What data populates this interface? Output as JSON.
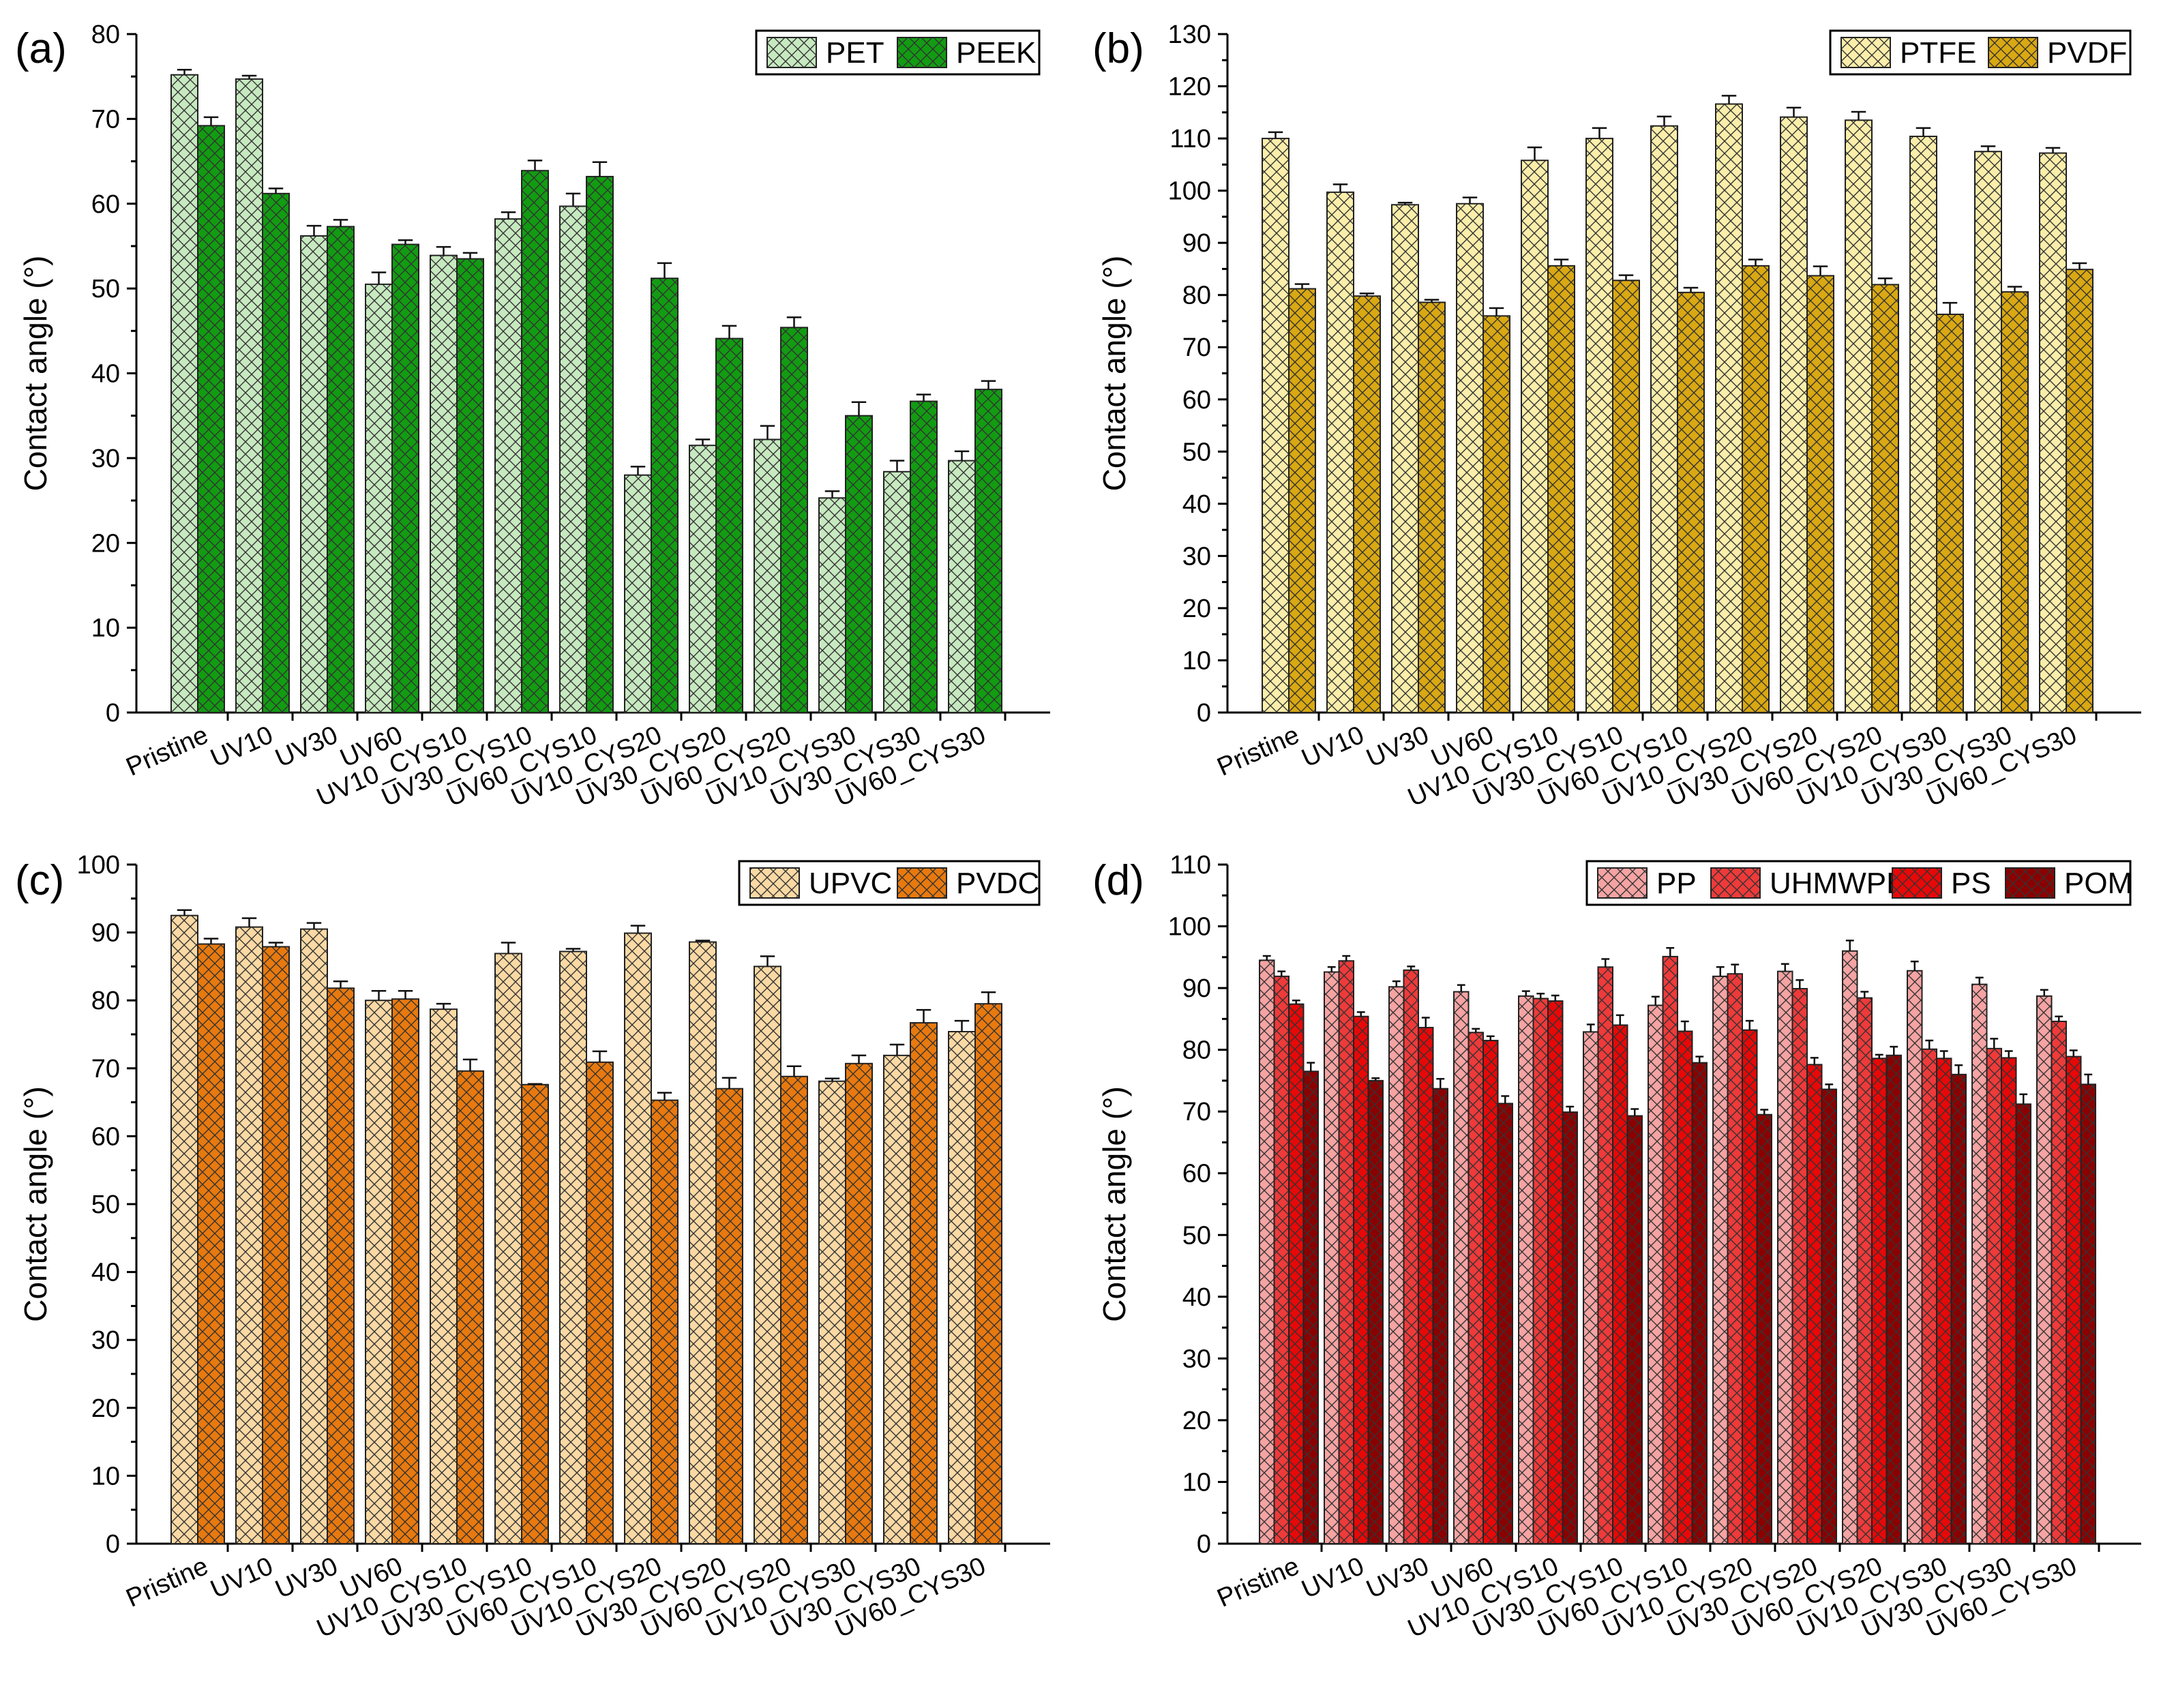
{
  "chart_data": [
    {
      "type": "bar",
      "panel_label": "(a)",
      "ylabel": "Contact angle (°)",
      "ylim": [
        0,
        80
      ],
      "ytick_step": 10,
      "legend_position": "top-right",
      "categories": [
        "Pristine",
        "UV10",
        "UV30",
        "UV60",
        "UV10_CYS10",
        "UV30_CYS10",
        "UV60_CYS10",
        "UV10_CYS20",
        "UV30_CYS20",
        "UV60_CYS20",
        "UV10_CYS30",
        "UV30_CYS30",
        "UV60_CYS30"
      ],
      "series": [
        {
          "name": "PET",
          "color": "#c7e9c0",
          "values": [
            75.2,
            74.7,
            56.2,
            50.5,
            53.9,
            58.2,
            59.7,
            28.0,
            31.5,
            32.2,
            25.3,
            28.4,
            29.7
          ],
          "errors": [
            0.6,
            0.4,
            1.2,
            1.4,
            1.0,
            0.8,
            1.5,
            1.0,
            0.7,
            1.6,
            0.8,
            1.3,
            1.1
          ]
        },
        {
          "name": "PEEK",
          "color": "#129c12",
          "values": [
            69.2,
            61.2,
            57.3,
            55.2,
            53.5,
            63.9,
            63.2,
            51.2,
            44.1,
            45.4,
            35.0,
            36.7,
            38.1
          ],
          "errors": [
            1.0,
            0.6,
            0.8,
            0.5,
            0.7,
            1.2,
            1.7,
            1.8,
            1.5,
            1.2,
            1.6,
            0.8,
            1.0
          ]
        }
      ]
    },
    {
      "type": "bar",
      "panel_label": "(b)",
      "ylabel": "Contact angle (°)",
      "ylim": [
        0,
        130
      ],
      "ytick_step": 10,
      "legend_position": "top-right",
      "categories": [
        "Pristine",
        "UV10",
        "UV30",
        "UV60",
        "UV10_CYS10",
        "UV30_CYS10",
        "UV60_CYS10",
        "UV10_CYS20",
        "UV30_CYS20",
        "UV60_CYS20",
        "UV10_CYS30",
        "UV30_CYS30",
        "UV60_CYS30"
      ],
      "series": [
        {
          "name": "PTFE",
          "color": "#fbeeaa",
          "values": [
            110.0,
            99.7,
            97.3,
            97.5,
            105.8,
            110.0,
            112.4,
            116.6,
            114.1,
            113.5,
            110.4,
            107.5,
            107.2
          ],
          "errors": [
            1.2,
            1.5,
            0.4,
            1.2,
            2.5,
            2.0,
            1.8,
            1.6,
            1.8,
            1.6,
            1.6,
            1.0,
            1.0
          ]
        },
        {
          "name": "PVDF",
          "color": "#d9a813",
          "values": [
            81.2,
            79.8,
            78.6,
            76.0,
            85.6,
            82.8,
            80.5,
            85.6,
            83.7,
            82.0,
            76.3,
            80.6,
            84.9
          ],
          "errors": [
            0.9,
            0.5,
            0.5,
            1.5,
            1.2,
            1.0,
            0.9,
            1.2,
            1.8,
            1.2,
            2.2,
            1.0,
            1.2
          ]
        }
      ]
    },
    {
      "type": "bar",
      "panel_label": "(c)",
      "ylabel": "Contact angle (°)",
      "ylim": [
        0,
        100
      ],
      "ytick_step": 10,
      "legend_position": "top-right",
      "categories": [
        "Pristine",
        "UV10",
        "UV30",
        "UV60",
        "UV10_CYS10",
        "UV30_CYS10",
        "UV60_CYS10",
        "UV10_CYS20",
        "UV30_CYS20",
        "UV60_CYS20",
        "UV10_CYS30",
        "UV30_CYS30",
        "UV60_CYS30"
      ],
      "series": [
        {
          "name": "UPVC",
          "color": "#fbd9a4",
          "values": [
            92.5,
            90.8,
            90.5,
            80.0,
            78.7,
            86.9,
            87.2,
            89.9,
            88.6,
            85.0,
            68.1,
            71.9,
            75.4
          ],
          "errors": [
            0.8,
            1.3,
            0.9,
            1.4,
            0.8,
            1.6,
            0.4,
            1.1,
            0.2,
            1.5,
            0.4,
            1.6,
            1.6
          ]
        },
        {
          "name": "PVDC",
          "color": "#e8790f",
          "values": [
            88.3,
            87.9,
            81.8,
            80.2,
            69.6,
            67.6,
            70.9,
            65.3,
            67.0,
            68.8,
            70.7,
            76.7,
            79.5
          ],
          "errors": [
            0.8,
            0.6,
            1.0,
            1.2,
            1.7,
            0.1,
            1.6,
            1.1,
            1.6,
            1.5,
            1.2,
            1.9,
            1.7
          ]
        }
      ]
    },
    {
      "type": "bar",
      "panel_label": "(d)",
      "ylabel": "Contact angle (°)",
      "ylim": [
        0,
        110
      ],
      "ytick_step": 10,
      "legend_position": "top-right",
      "categories": [
        "Pristine",
        "UV10",
        "UV30",
        "UV60",
        "UV10_CYS10",
        "UV30_CYS10",
        "UV60_CYS10",
        "UV10_CYS20",
        "UV30_CYS20",
        "UV60_CYS20",
        "UV10_CYS30",
        "UV30_CYS30",
        "UV60_CYS30"
      ],
      "series": [
        {
          "name": "PP",
          "color": "#f5a3a3",
          "values": [
            94.5,
            92.6,
            90.2,
            89.4,
            88.7,
            82.9,
            87.2,
            91.9,
            92.7,
            96.0,
            92.8,
            90.6,
            88.7
          ],
          "errors": [
            0.7,
            0.8,
            0.9,
            1.1,
            0.8,
            1.2,
            1.4,
            1.5,
            1.2,
            1.7,
            1.5,
            1.1,
            1.0
          ]
        },
        {
          "name": "UHMWPE",
          "color": "#ef3a3a",
          "values": [
            91.9,
            94.4,
            92.9,
            82.8,
            88.3,
            93.4,
            95.1,
            92.3,
            89.9,
            88.4,
            80.1,
            80.2,
            84.6
          ],
          "errors": [
            0.8,
            0.8,
            0.6,
            0.6,
            0.8,
            1.3,
            1.4,
            1.5,
            1.4,
            1.0,
            1.4,
            1.6,
            0.8
          ]
        },
        {
          "name": "PS",
          "color": "#e80808",
          "values": [
            87.4,
            85.4,
            83.6,
            81.5,
            87.9,
            84.0,
            83.0,
            83.2,
            77.6,
            78.6,
            78.6,
            78.7,
            78.9
          ],
          "errors": [
            0.6,
            0.7,
            1.6,
            0.7,
            0.9,
            1.6,
            1.6,
            1.5,
            1.1,
            0.6,
            1.2,
            1.1,
            1.0
          ]
        },
        {
          "name": "POM",
          "color": "#8b0000",
          "values": [
            76.5,
            75.0,
            73.7,
            71.3,
            69.9,
            69.3,
            77.9,
            69.5,
            73.6,
            79.1,
            76.0,
            71.2,
            74.4
          ],
          "errors": [
            1.4,
            0.4,
            1.6,
            1.2,
            0.9,
            1.1,
            1.0,
            0.8,
            0.8,
            1.4,
            1.5,
            1.6,
            1.6
          ]
        }
      ]
    }
  ]
}
